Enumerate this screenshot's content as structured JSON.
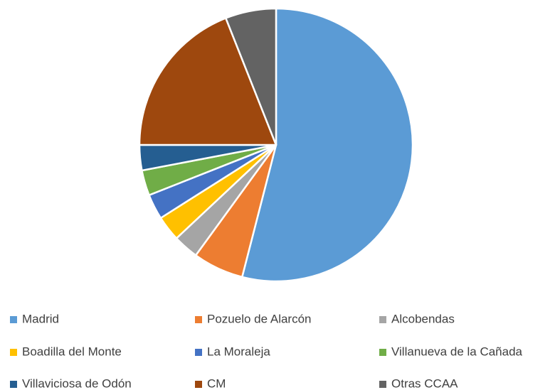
{
  "chart_data": {
    "type": "pie",
    "categories": [
      "Madrid",
      "Pozuelo de Alarcón",
      "Alcobendas",
      "Boadilla del Monte",
      "La Moraleja",
      "Villanueva de la Cañada",
      "Villaviciosa de Odón",
      "CM",
      "Otras CCAA"
    ],
    "values": [
      54,
      6,
      3,
      3,
      3,
      3,
      3,
      19,
      6
    ],
    "colors": [
      "#5b9bd5",
      "#ed7d31",
      "#a5a5a5",
      "#ffc000",
      "#4472c4",
      "#70ad47",
      "#255e91",
      "#9e480e",
      "#636363"
    ],
    "legend": "bottom"
  }
}
